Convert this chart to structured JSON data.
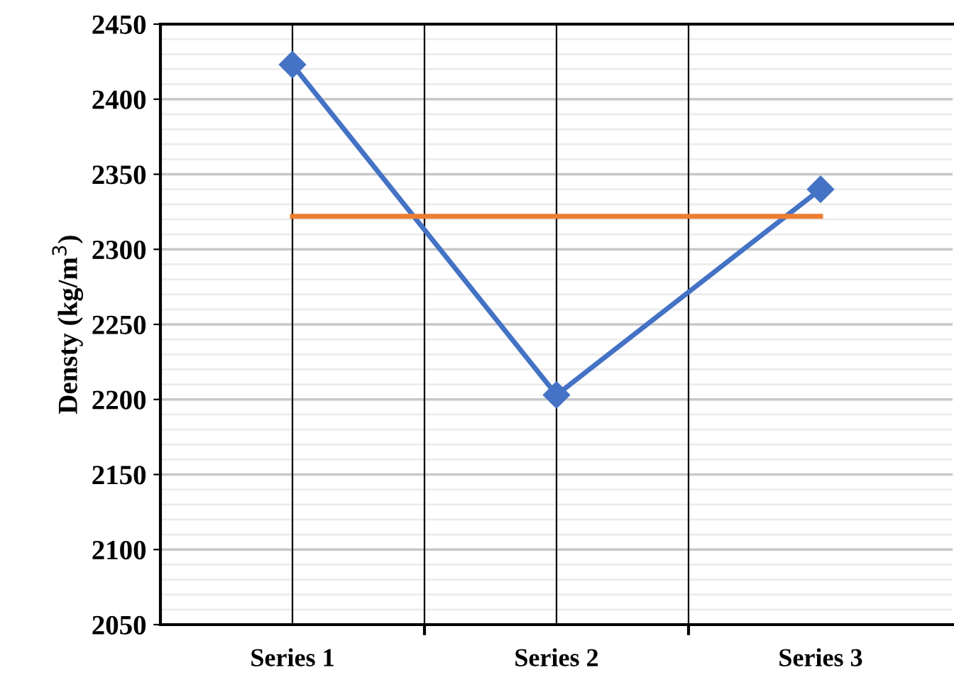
{
  "chart_data": {
    "type": "line",
    "ylabel": "Densty (kg/m$^{3}$)",
    "categories": [
      "Series 1",
      "Series 2",
      "Series 3"
    ],
    "series": [
      {
        "color": "#4472c4",
        "values": [
          2423,
          2203,
          2340
        ],
        "marker": "diamond"
      },
      {
        "color": "#ed7d31",
        "values": [
          2322,
          2322,
          2322
        ],
        "marker": "none"
      }
    ],
    "ylim": [
      2050,
      2450
    ],
    "yticks": [
      2050,
      2100,
      2150,
      2200,
      2250,
      2300,
      2350,
      2400,
      2450
    ],
    "grid": true,
    "legend": false
  }
}
